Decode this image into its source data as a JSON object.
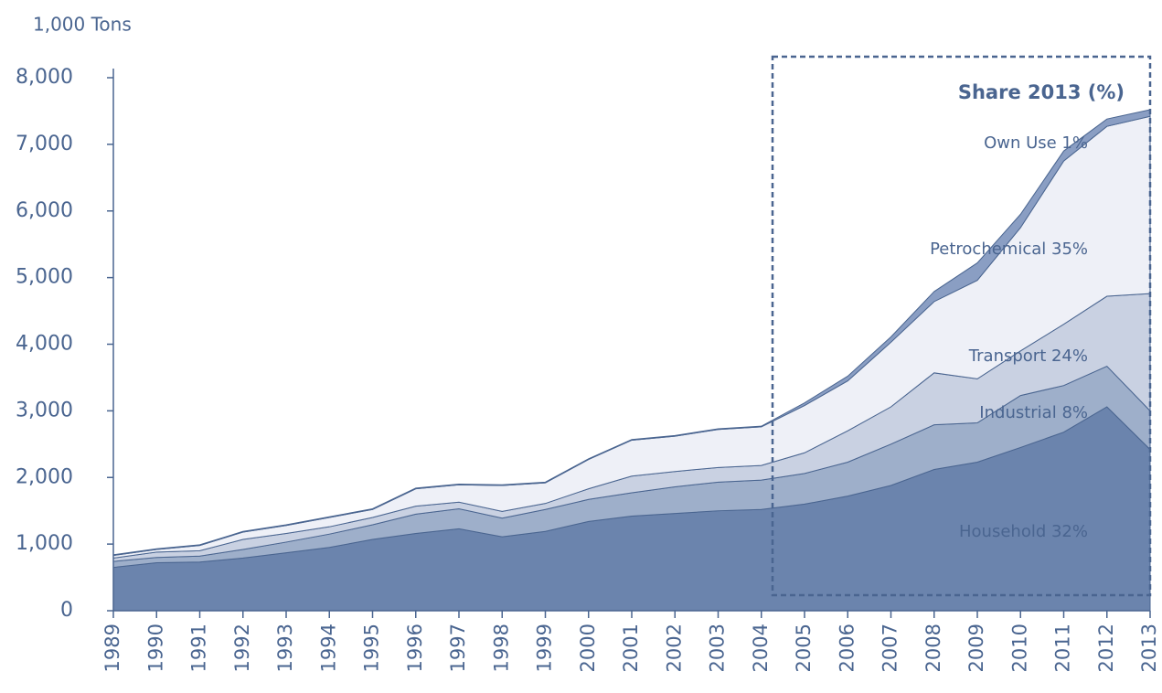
{
  "chart_data": {
    "type": "stacked_area",
    "y_unit_label": "1,000 Tons",
    "annotation": "Share 2013 (%)",
    "x": [
      1989,
      1990,
      1991,
      1992,
      1993,
      1994,
      1995,
      1996,
      1997,
      1998,
      1999,
      2000,
      2001,
      2002,
      2003,
      2004,
      2005,
      2006,
      2007,
      2008,
      2009,
      2010,
      2011,
      2012,
      2013
    ],
    "xlim": [
      1989,
      2013
    ],
    "xticks": [
      1989,
      1990,
      1991,
      1992,
      1993,
      1994,
      1995,
      1996,
      1997,
      1998,
      1999,
      2000,
      2001,
      2002,
      2003,
      2004,
      2005,
      2006,
      2007,
      2008,
      2009,
      2010,
      2011,
      2012,
      2013
    ],
    "ylim": [
      0,
      8000
    ],
    "yticks": [
      0,
      {
        "value": 1000,
        "label": "1,000"
      },
      {
        "value": 2000,
        "label": "2,000"
      },
      {
        "value": 3000,
        "label": "3,000"
      },
      {
        "value": 4000,
        "label": "4,000"
      },
      {
        "value": 5000,
        "label": "5,000"
      },
      {
        "value": 6000,
        "label": "6,000"
      },
      {
        "value": 7000,
        "label": "7,000"
      },
      {
        "value": 8000,
        "label": "8,000"
      }
    ],
    "grid": false,
    "series": [
      {
        "name": "Household 32%",
        "color": "#6b84ad",
        "values": [
          650,
          720,
          730,
          790,
          870,
          950,
          1070,
          1160,
          1230,
          1110,
          1190,
          1340,
          1420,
          1460,
          1500,
          1520,
          1600,
          1720,
          1880,
          2120,
          2230,
          2450,
          2680,
          3060,
          2420
        ]
      },
      {
        "name": "Industrial 8%",
        "color": "#9eafca",
        "values": [
          90,
          80,
          90,
          130,
          160,
          200,
          220,
          290,
          300,
          280,
          330,
          330,
          350,
          400,
          430,
          440,
          460,
          510,
          620,
          670,
          590,
          780,
          700,
          610,
          580
        ]
      },
      {
        "name": "Transport 24%",
        "color": "#c9d1e2",
        "values": [
          50,
          80,
          80,
          150,
          130,
          110,
          110,
          120,
          100,
          100,
          90,
          160,
          250,
          230,
          220,
          220,
          310,
          470,
          560,
          780,
          660,
          670,
          920,
          1050,
          1760
        ]
      },
      {
        "name": "Petrochemical 35%",
        "color": "#eef0f7",
        "values": [
          40,
          40,
          80,
          110,
          120,
          140,
          120,
          260,
          260,
          390,
          310,
          440,
          540,
          530,
          570,
          580,
          710,
          750,
          970,
          1070,
          1480,
          1850,
          2450,
          2550,
          2660
        ]
      },
      {
        "name": "Own Use 1%",
        "color": "#8a9ec3",
        "values": [
          10,
          10,
          10,
          10,
          10,
          10,
          10,
          10,
          10,
          10,
          10,
          10,
          10,
          10,
          10,
          10,
          40,
          70,
          80,
          150,
          260,
          200,
          150,
          110,
          100
        ]
      }
    ]
  }
}
